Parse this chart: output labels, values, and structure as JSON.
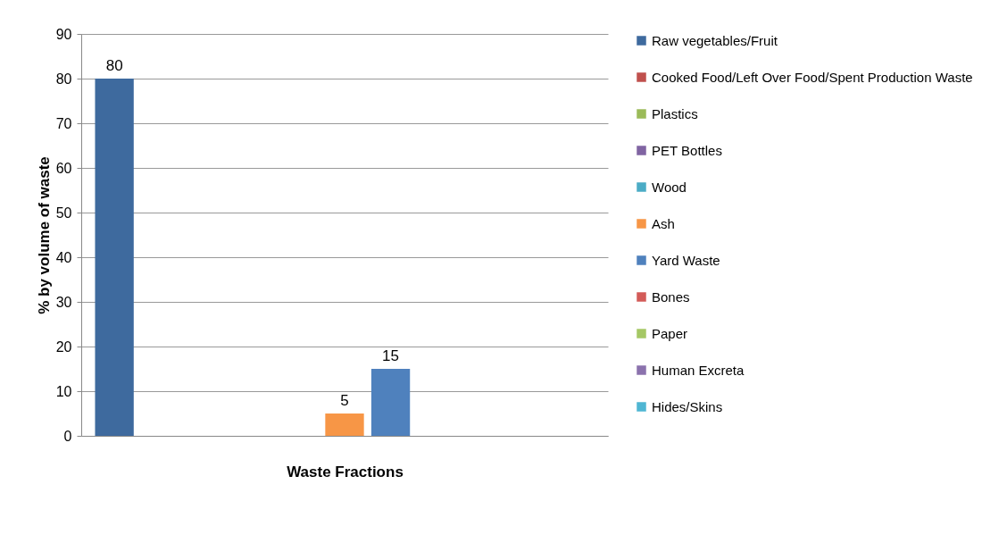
{
  "chart_data": {
    "type": "bar",
    "categories": [
      null
    ],
    "xlabel": "Waste Fractions",
    "ylabel": "% by volume of waste",
    "ylim": [
      0,
      90
    ],
    "yticks": [
      0,
      10,
      20,
      30,
      40,
      50,
      60,
      70,
      80,
      90
    ],
    "grid": "y",
    "legend": "right",
    "data_labels": true,
    "series": [
      {
        "name": "Raw vegetables/Fruit",
        "color": "#3e6a9e",
        "values": [
          80
        ]
      },
      {
        "name": "Cooked Food/Left Over Food/Spent Production Waste",
        "color": "#c0504d",
        "values": [
          null
        ]
      },
      {
        "name": "Plastics",
        "color": "#9bbb59",
        "values": [
          null
        ]
      },
      {
        "name": "PET Bottles",
        "color": "#8064a2",
        "values": [
          null
        ]
      },
      {
        "name": "Wood",
        "color": "#4bacc6",
        "values": [
          null
        ]
      },
      {
        "name": "Ash",
        "color": "#f79646",
        "values": [
          5
        ]
      },
      {
        "name": "Yard Waste",
        "color": "#4f81bd",
        "values": [
          15
        ]
      },
      {
        "name": "Bones",
        "color": "#d35b58",
        "values": [
          null
        ]
      },
      {
        "name": "Paper",
        "color": "#a5c865",
        "values": [
          null
        ]
      },
      {
        "name": "Human Excreta",
        "color": "#8b72ad",
        "values": [
          null
        ]
      },
      {
        "name": "Hides/Skins",
        "color": "#4fb6d3",
        "values": [
          null
        ]
      }
    ]
  }
}
